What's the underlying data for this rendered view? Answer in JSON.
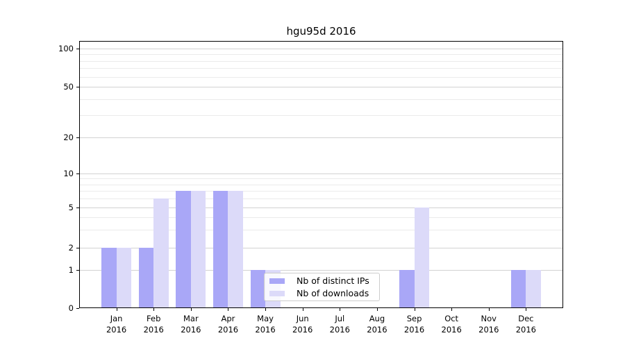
{
  "title": "hgu95d 2016",
  "chart_data": {
    "type": "bar",
    "title": "hgu95d 2016",
    "categories": [
      {
        "month": "Jan",
        "year": "2016"
      },
      {
        "month": "Feb",
        "year": "2016"
      },
      {
        "month": "Mar",
        "year": "2016"
      },
      {
        "month": "Apr",
        "year": "2016"
      },
      {
        "month": "May",
        "year": "2016"
      },
      {
        "month": "Jun",
        "year": "2016"
      },
      {
        "month": "Jul",
        "year": "2016"
      },
      {
        "month": "Aug",
        "year": "2016"
      },
      {
        "month": "Sep",
        "year": "2016"
      },
      {
        "month": "Oct",
        "year": "2016"
      },
      {
        "month": "Nov",
        "year": "2016"
      },
      {
        "month": "Dec",
        "year": "2016"
      }
    ],
    "series": [
      {
        "name": "Nb of distinct IPs",
        "color": "#a9a7f7",
        "values": [
          2,
          2,
          7,
          7,
          1,
          0,
          0,
          0,
          1,
          0,
          0,
          1
        ]
      },
      {
        "name": "Nb of downloads",
        "color": "#dcdaf9",
        "values": [
          2,
          6,
          7,
          7,
          1,
          0,
          0,
          0,
          5,
          0,
          0,
          1
        ]
      }
    ],
    "xlabel": "",
    "ylabel": "",
    "yscale": "log-like (0,1,2,5,10,20,50,100)",
    "ylim": [
      0,
      100
    ],
    "y_major_ticks": [
      0,
      1,
      2,
      5,
      10,
      20,
      50,
      100
    ],
    "y_minor_gridlines": [
      3,
      4,
      6,
      7,
      8,
      9,
      30,
      40,
      60,
      70,
      80,
      90
    ],
    "grid": "on",
    "legend_position": "lower center (overlapping May bars)"
  },
  "legend": {
    "entries": [
      "Nb of distinct IPs",
      "Nb of downloads"
    ]
  }
}
